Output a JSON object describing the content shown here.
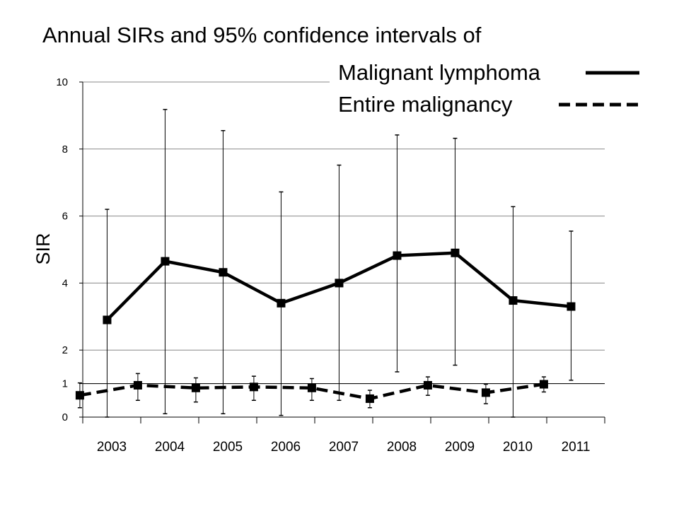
{
  "chart_data": {
    "type": "line",
    "title": "Annual SIRs and 95% confidence intervals of",
    "xlabel": "",
    "ylabel": "SIR",
    "categories": [
      "2003",
      "2004",
      "2005",
      "2006",
      "2007",
      "2008",
      "2009",
      "2010",
      "2011"
    ],
    "yticks": [
      "0",
      "1",
      "2",
      "4",
      "6",
      "8",
      "10"
    ],
    "ytick_values": [
      0,
      1,
      2,
      4,
      6,
      8,
      10
    ],
    "ylim": [
      0,
      10
    ],
    "grid": true,
    "legend_position": "top-right",
    "series": [
      {
        "name": "Malignant lymphoma",
        "line_style": "solid",
        "values": [
          2.9,
          4.65,
          4.32,
          3.4,
          4.0,
          4.82,
          4.9,
          3.48,
          3.3
        ],
        "ci_low": [
          0.0,
          0.1,
          0.1,
          0.05,
          0.5,
          1.35,
          1.55,
          0.0,
          1.1
        ],
        "ci_high": [
          6.2,
          9.18,
          8.55,
          6.72,
          7.52,
          8.42,
          8.32,
          6.28,
          5.55
        ]
      },
      {
        "name": "Entire malignancy",
        "line_style": "dashed",
        "values": [
          0.65,
          0.95,
          0.87,
          0.9,
          0.87,
          0.55,
          0.95,
          0.73,
          0.98
        ],
        "ci_low": [
          0.28,
          0.5,
          0.45,
          0.5,
          0.5,
          0.28,
          0.65,
          0.4,
          0.75
        ],
        "ci_high": [
          1.02,
          1.3,
          1.17,
          1.22,
          1.15,
          0.8,
          1.2,
          0.98,
          1.2
        ]
      }
    ],
    "reference_line": 1
  }
}
